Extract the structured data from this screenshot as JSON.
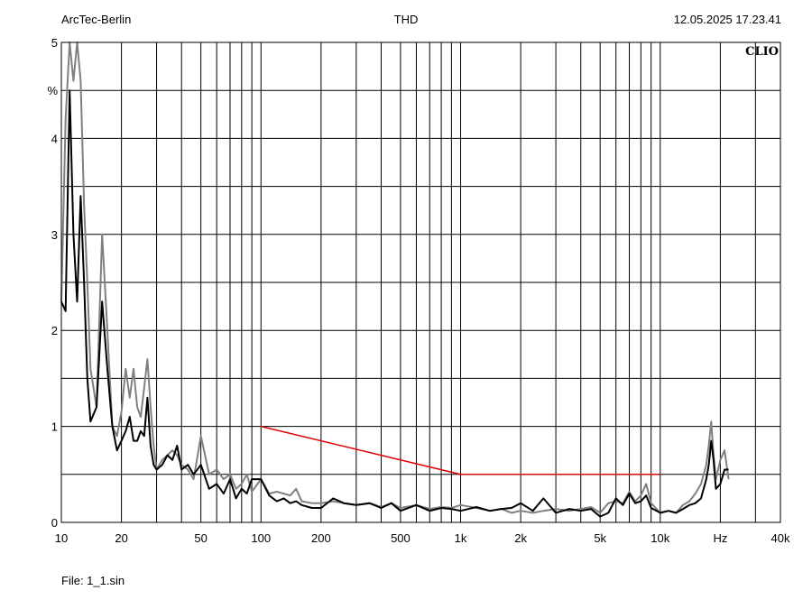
{
  "header": {
    "left": "ArcTec-Berlin",
    "center": "THD",
    "right": "12.05.2025 17.23.41"
  },
  "footer": {
    "file": "File: 1_1.sin"
  },
  "brand": "CLIO",
  "colors": {
    "background": "#ffffff",
    "grid": "#000000",
    "series_black": "#000000",
    "series_gray": "#808080",
    "reference_line": "#e00000"
  },
  "chart_data": {
    "type": "line",
    "title": "THD",
    "xlabel": "Hz",
    "ylabel": "%",
    "x_scale": "log",
    "xlim": [
      10,
      40000
    ],
    "ylim": [
      0,
      5
    ],
    "x_ticks": [
      {
        "value": 10,
        "label": "10"
      },
      {
        "value": 20,
        "label": "20"
      },
      {
        "value": 50,
        "label": "50"
      },
      {
        "value": 100,
        "label": "100"
      },
      {
        "value": 200,
        "label": "200"
      },
      {
        "value": 500,
        "label": "500"
      },
      {
        "value": 1000,
        "label": "1k"
      },
      {
        "value": 2000,
        "label": "2k"
      },
      {
        "value": 5000,
        "label": "5k"
      },
      {
        "value": 10000,
        "label": "10k"
      },
      {
        "value": 20000,
        "label": "Hz"
      },
      {
        "value": 40000,
        "label": "40k"
      }
    ],
    "y_ticks": [
      {
        "value": 0,
        "label": "0"
      },
      {
        "value": 1,
        "label": "1"
      },
      {
        "value": 2,
        "label": "2"
      },
      {
        "value": 3,
        "label": "3"
      },
      {
        "value": 4,
        "label": "4"
      },
      {
        "value": 4.5,
        "label": "%"
      },
      {
        "value": 5,
        "label": "5"
      }
    ],
    "grid": true,
    "series": [
      {
        "color": "#808080",
        "x": [
          10,
          10.5,
          11,
          11.5,
          12,
          12.5,
          13,
          13.5,
          14,
          15,
          16,
          17,
          18,
          19,
          20,
          21,
          22,
          23,
          24,
          25,
          26,
          27,
          28,
          29,
          30,
          32,
          34,
          36,
          38,
          40,
          43,
          46,
          50,
          55,
          60,
          65,
          70,
          75,
          80,
          85,
          90,
          100,
          110,
          120,
          130,
          140,
          150,
          160,
          180,
          200,
          230,
          260,
          300,
          350,
          400,
          450,
          500,
          600,
          700,
          800,
          900,
          1000,
          1200,
          1400,
          1600,
          1800,
          2000,
          2300,
          2600,
          3000,
          3500,
          4000,
          4500,
          5000,
          5500,
          6000,
          6500,
          7000,
          7500,
          8000,
          8500,
          9000,
          10000,
          11000,
          12000,
          13000,
          14000,
          15000,
          16000,
          17000,
          17500,
          18000,
          18500,
          19000,
          20000,
          21000,
          22000
        ],
        "values": [
          2.3,
          4.2,
          5.0,
          4.6,
          5.0,
          4.6,
          3.3,
          2.5,
          1.6,
          1.2,
          3.0,
          2.0,
          1.0,
          0.9,
          1.15,
          1.6,
          1.3,
          1.6,
          1.2,
          1.1,
          1.4,
          1.7,
          1.2,
          0.8,
          0.55,
          0.65,
          0.7,
          0.75,
          0.7,
          0.6,
          0.55,
          0.45,
          0.9,
          0.5,
          0.55,
          0.45,
          0.5,
          0.35,
          0.4,
          0.5,
          0.32,
          0.45,
          0.3,
          0.32,
          0.3,
          0.28,
          0.35,
          0.22,
          0.2,
          0.2,
          0.22,
          0.2,
          0.18,
          0.2,
          0.16,
          0.2,
          0.15,
          0.18,
          0.14,
          0.16,
          0.15,
          0.18,
          0.15,
          0.12,
          0.14,
          0.1,
          0.12,
          0.1,
          0.12,
          0.14,
          0.12,
          0.14,
          0.16,
          0.1,
          0.2,
          0.22,
          0.2,
          0.32,
          0.22,
          0.28,
          0.4,
          0.2,
          0.1,
          0.12,
          0.1,
          0.18,
          0.22,
          0.3,
          0.4,
          0.6,
          0.8,
          1.05,
          0.7,
          0.45,
          0.65,
          0.75,
          0.45
        ]
      },
      {
        "color": "#000000",
        "x": [
          10,
          10.5,
          11,
          11.5,
          12,
          12.5,
          13,
          13.5,
          14,
          15,
          16,
          17,
          18,
          19,
          20,
          21,
          22,
          23,
          24,
          25,
          26,
          27,
          28,
          29,
          30,
          32,
          34,
          36,
          38,
          40,
          43,
          46,
          50,
          55,
          60,
          65,
          70,
          75,
          80,
          85,
          90,
          100,
          110,
          120,
          130,
          140,
          150,
          160,
          180,
          200,
          230,
          260,
          300,
          350,
          400,
          450,
          500,
          600,
          700,
          800,
          900,
          1000,
          1200,
          1400,
          1600,
          1800,
          2000,
          2300,
          2600,
          3000,
          3500,
          4000,
          4500,
          5000,
          5500,
          6000,
          6500,
          7000,
          7500,
          8000,
          8500,
          9000,
          10000,
          11000,
          12000,
          13000,
          14000,
          15000,
          16000,
          17000,
          17500,
          18000,
          18500,
          19000,
          20000,
          21000,
          22000
        ],
        "values": [
          2.3,
          2.2,
          4.5,
          3.0,
          2.3,
          3.4,
          2.5,
          1.5,
          1.05,
          1.2,
          2.3,
          1.6,
          1.0,
          0.75,
          0.85,
          0.95,
          1.1,
          0.85,
          0.85,
          0.95,
          0.9,
          1.3,
          0.8,
          0.6,
          0.55,
          0.6,
          0.7,
          0.65,
          0.8,
          0.55,
          0.6,
          0.5,
          0.6,
          0.35,
          0.4,
          0.3,
          0.45,
          0.25,
          0.35,
          0.3,
          0.45,
          0.45,
          0.28,
          0.22,
          0.25,
          0.2,
          0.22,
          0.18,
          0.15,
          0.15,
          0.25,
          0.2,
          0.18,
          0.2,
          0.15,
          0.2,
          0.12,
          0.18,
          0.12,
          0.15,
          0.14,
          0.12,
          0.16,
          0.12,
          0.14,
          0.15,
          0.2,
          0.12,
          0.25,
          0.1,
          0.14,
          0.12,
          0.14,
          0.06,
          0.1,
          0.25,
          0.18,
          0.3,
          0.2,
          0.22,
          0.28,
          0.15,
          0.1,
          0.12,
          0.1,
          0.14,
          0.18,
          0.2,
          0.25,
          0.45,
          0.6,
          0.85,
          0.65,
          0.35,
          0.4,
          0.55,
          0.55
        ]
      }
    ],
    "reference_line": {
      "color": "#e00000",
      "x": [
        100,
        1000,
        10000
      ],
      "values": [
        1.0,
        0.5,
        0.5
      ]
    }
  }
}
